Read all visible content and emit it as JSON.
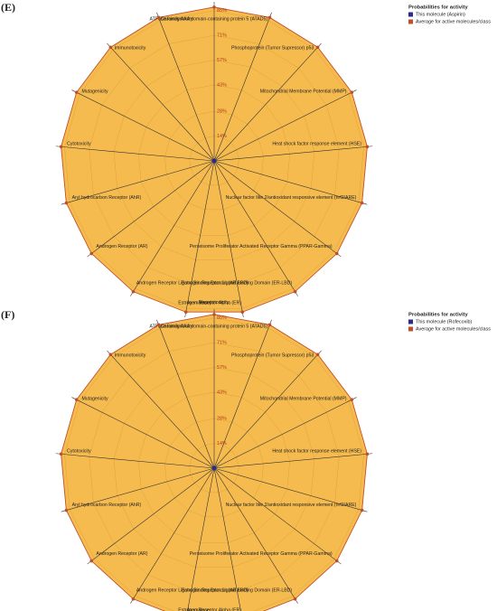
{
  "chart_data": [
    {
      "type": "radar",
      "title": "(E)",
      "legend_title": "Probabilities for activity",
      "categories": [
        "Hepatotoxicity",
        "ATPase family AAA domain-containing protein 5 (ATAD5)",
        "Phosphoprotein (Tumor Supressor) p53",
        "Mitochondrial Membrane Potential (MMP)",
        "Heat shock factor response element (HSE)",
        "Nuclear factor like 2/antioxidant responsive element (nrf2/ARE)",
        "Peroxisome Proliferator Activated Receptor Gamma (PPAR-Gamma)",
        "Estrogen Receptor Ligand Binding Domain (ER-LBD)",
        "Estrogen Receptor Alpha (ER)",
        "Aromatase",
        "Androgen Receptor Ligand Binding Domain (AR-LBD)",
        "Androgen Receptor (AR)",
        "Aryl hydrocarbon Receptor (AhR)",
        "Cytotoxicity",
        "Mutagenicity",
        "Immunotoxicity",
        "Carcinogenicity"
      ],
      "series": [
        {
          "name": "This molecule (Aspirin)",
          "color": "#2b2b8c",
          "values": [
            0,
            0,
            0,
            0,
            0,
            0,
            0,
            0,
            0,
            0,
            0,
            0,
            0,
            0,
            0,
            0,
            0
          ]
        },
        {
          "name": "Average for active molecules/class",
          "color": "#c0502a",
          "values": [
            87,
            87,
            87,
            87,
            87,
            87,
            87,
            87,
            87,
            87,
            87,
            87,
            87,
            87,
            87,
            87,
            87
          ]
        }
      ],
      "rlim": [
        0,
        90
      ],
      "rticks": [
        {
          "value": 14,
          "label": "14%"
        },
        {
          "value": 28,
          "label": "28%"
        },
        {
          "value": 43,
          "label": "43%"
        },
        {
          "value": 57,
          "label": "57%"
        },
        {
          "value": 71,
          "label": "71%"
        },
        {
          "value": 85,
          "label": "85%"
        }
      ]
    },
    {
      "type": "radar",
      "title": "(F)",
      "legend_title": "Probabilities for activity",
      "categories": [
        "Hepatotoxicity",
        "ATPase family AAA domain-containing protein 5 (ATAD5)",
        "Phosphoprotein (Tumor Supressor) p53",
        "Mitochondrial Membrane Potential (MMP)",
        "Heat shock factor response element (HSE)",
        "Nuclear factor like 2/antioxidant responsive element (nrf2/ARE)",
        "Peroxisome Proliferator Activated Receptor Gamma (PPAR-Gamma)",
        "Estrogen Receptor Ligand Binding Domain (ER-LBD)",
        "Estrogen Receptor Alpha (ER)",
        "Aromatase",
        "Androgen Receptor Ligand Binding Domain (AR-LBD)",
        "Androgen Receptor (AR)",
        "Aryl hydrocarbon Receptor (AhR)",
        "Cytotoxicity",
        "Mutagenicity",
        "Immunotoxicity",
        "Carcinogenicity"
      ],
      "series": [
        {
          "name": "This molecule (Rofecoxib)",
          "color": "#2b2b8c",
          "values": [
            0,
            0,
            0,
            0,
            0,
            0,
            0,
            0,
            0,
            0,
            0,
            0,
            0,
            0,
            0,
            0,
            0
          ]
        },
        {
          "name": "Average for active molecules/class",
          "color": "#c0502a",
          "values": [
            87,
            87,
            87,
            87,
            87,
            87,
            87,
            87,
            87,
            87,
            87,
            87,
            87,
            87,
            87,
            87,
            87
          ]
        }
      ],
      "rlim": [
        0,
        90
      ],
      "rticks": [
        {
          "value": 14,
          "label": "14%"
        },
        {
          "value": 28,
          "label": "28%"
        },
        {
          "value": 43,
          "label": "43%"
        },
        {
          "value": 57,
          "label": "57%"
        },
        {
          "value": 71,
          "label": "71%"
        },
        {
          "value": 85,
          "label": "85%"
        }
      ]
    }
  ]
}
